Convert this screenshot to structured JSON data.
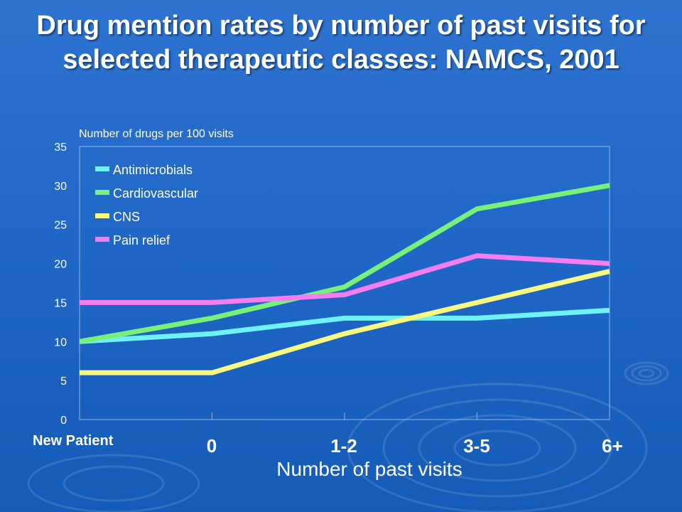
{
  "chart_data": {
    "type": "line",
    "title": "Drug mention rates by number of past visits for selected therapeutic classes: NAMCS, 2001",
    "ylabel": "Number of drugs per 100 visits",
    "xlabel": "Number of past visits",
    "categories": [
      "New Patient",
      "0",
      "1-2",
      "3-5",
      "6+"
    ],
    "ylim": [
      0,
      35
    ],
    "yticks": [
      "0",
      "5",
      "10",
      "15",
      "20",
      "25",
      "30",
      "35"
    ],
    "legend_position": "top-left",
    "series": [
      {
        "name": "Antimicrobials",
        "color": "#6ff2f6",
        "values": [
          10,
          11,
          13,
          13,
          14
        ]
      },
      {
        "name": "Cardiovascular",
        "color": "#79f07a",
        "values": [
          10,
          13,
          17,
          27,
          30
        ]
      },
      {
        "name": "CNS",
        "color": "#f8f880",
        "values": [
          6,
          6,
          11,
          15,
          19
        ]
      },
      {
        "name": "Pain relief",
        "color": "#f47df2",
        "values": [
          15,
          15,
          16,
          21,
          20
        ]
      }
    ]
  }
}
